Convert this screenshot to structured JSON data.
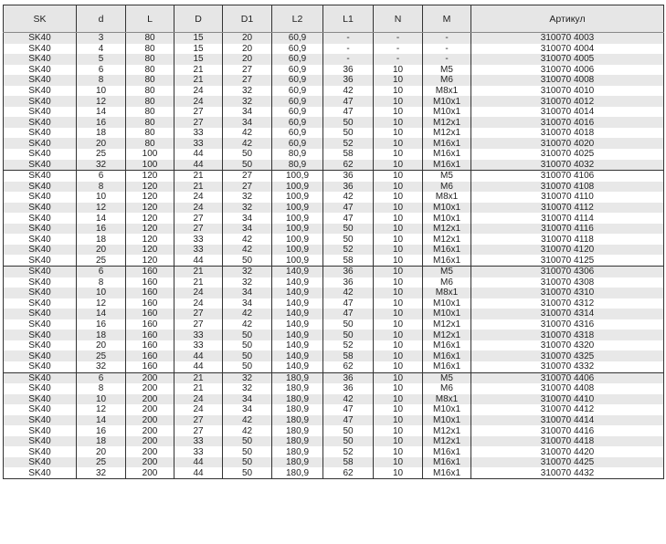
{
  "headers": [
    "SK",
    "d",
    "L",
    "D",
    "D1",
    "L2",
    "L1",
    "N",
    "M",
    "Артикул"
  ],
  "rows": [
    [
      "SK40",
      "3",
      "80",
      "15",
      "20",
      "60,9",
      "-",
      "-",
      "-",
      "310070 4003"
    ],
    [
      "SK40",
      "4",
      "80",
      "15",
      "20",
      "60,9",
      "-",
      "-",
      "-",
      "310070 4004"
    ],
    [
      "SK40",
      "5",
      "80",
      "15",
      "20",
      "60,9",
      "-",
      "-",
      "-",
      "310070 4005"
    ],
    [
      "SK40",
      "6",
      "80",
      "21",
      "27",
      "60,9",
      "36",
      "10",
      "M5",
      "310070 4006"
    ],
    [
      "SK40",
      "8",
      "80",
      "21",
      "27",
      "60,9",
      "36",
      "10",
      "M6",
      "310070 4008"
    ],
    [
      "SK40",
      "10",
      "80",
      "24",
      "32",
      "60,9",
      "42",
      "10",
      "M8x1",
      "310070 4010"
    ],
    [
      "SK40",
      "12",
      "80",
      "24",
      "32",
      "60,9",
      "47",
      "10",
      "M10x1",
      "310070 4012"
    ],
    [
      "SK40",
      "14",
      "80",
      "27",
      "34",
      "60,9",
      "47",
      "10",
      "M10x1",
      "310070 4014"
    ],
    [
      "SK40",
      "16",
      "80",
      "27",
      "34",
      "60,9",
      "50",
      "10",
      "M12x1",
      "310070 4016"
    ],
    [
      "SK40",
      "18",
      "80",
      "33",
      "42",
      "60,9",
      "50",
      "10",
      "M12x1",
      "310070 4018"
    ],
    [
      "SK40",
      "20",
      "80",
      "33",
      "42",
      "60,9",
      "52",
      "10",
      "M16x1",
      "310070 4020"
    ],
    [
      "SK40",
      "25",
      "100",
      "44",
      "50",
      "80,9",
      "58",
      "10",
      "M16x1",
      "310070 4025"
    ],
    [
      "SK40",
      "32",
      "100",
      "44",
      "50",
      "80,9",
      "62",
      "10",
      "M16x1",
      "310070 4032"
    ],
    [
      "SK40",
      "6",
      "120",
      "21",
      "27",
      "100,9",
      "36",
      "10",
      "M5",
      "310070 4106"
    ],
    [
      "SK40",
      "8",
      "120",
      "21",
      "27",
      "100,9",
      "36",
      "10",
      "M6",
      "310070 4108"
    ],
    [
      "SK40",
      "10",
      "120",
      "24",
      "32",
      "100,9",
      "42",
      "10",
      "M8x1",
      "310070 4110"
    ],
    [
      "SK40",
      "12",
      "120",
      "24",
      "32",
      "100,9",
      "47",
      "10",
      "M10x1",
      "310070 4112"
    ],
    [
      "SK40",
      "14",
      "120",
      "27",
      "34",
      "100,9",
      "47",
      "10",
      "M10x1",
      "310070 4114"
    ],
    [
      "SK40",
      "16",
      "120",
      "27",
      "34",
      "100,9",
      "50",
      "10",
      "M12x1",
      "310070 4116"
    ],
    [
      "SK40",
      "18",
      "120",
      "33",
      "42",
      "100,9",
      "50",
      "10",
      "M12x1",
      "310070 4118"
    ],
    [
      "SK40",
      "20",
      "120",
      "33",
      "42",
      "100,9",
      "52",
      "10",
      "M16x1",
      "310070 4120"
    ],
    [
      "SK40",
      "25",
      "120",
      "44",
      "50",
      "100,9",
      "58",
      "10",
      "M16x1",
      "310070 4125"
    ],
    [
      "SK40",
      "6",
      "160",
      "21",
      "32",
      "140,9",
      "36",
      "10",
      "M5",
      "310070 4306"
    ],
    [
      "SK40",
      "8",
      "160",
      "21",
      "32",
      "140,9",
      "36",
      "10",
      "M6",
      "310070 4308"
    ],
    [
      "SK40",
      "10",
      "160",
      "24",
      "34",
      "140,9",
      "42",
      "10",
      "M8x1",
      "310070 4310"
    ],
    [
      "SK40",
      "12",
      "160",
      "24",
      "34",
      "140,9",
      "47",
      "10",
      "M10x1",
      "310070 4312"
    ],
    [
      "SK40",
      "14",
      "160",
      "27",
      "42",
      "140,9",
      "47",
      "10",
      "M10x1",
      "310070 4314"
    ],
    [
      "SK40",
      "16",
      "160",
      "27",
      "42",
      "140,9",
      "50",
      "10",
      "M12x1",
      "310070 4316"
    ],
    [
      "SK40",
      "18",
      "160",
      "33",
      "50",
      "140,9",
      "50",
      "10",
      "M12x1",
      "310070 4318"
    ],
    [
      "SK40",
      "20",
      "160",
      "33",
      "50",
      "140,9",
      "52",
      "10",
      "M16x1",
      "310070 4320"
    ],
    [
      "SK40",
      "25",
      "160",
      "44",
      "50",
      "140,9",
      "58",
      "10",
      "M16x1",
      "310070 4325"
    ],
    [
      "SK40",
      "32",
      "160",
      "44",
      "50",
      "140,9",
      "62",
      "10",
      "M16x1",
      "310070 4332"
    ],
    [
      "SK40",
      "6",
      "200",
      "21",
      "32",
      "180,9",
      "36",
      "10",
      "M5",
      "310070 4406"
    ],
    [
      "SK40",
      "8",
      "200",
      "21",
      "32",
      "180,9",
      "36",
      "10",
      "M6",
      "310070 4408"
    ],
    [
      "SK40",
      "10",
      "200",
      "24",
      "34",
      "180,9",
      "42",
      "10",
      "M8x1",
      "310070 4410"
    ],
    [
      "SK40",
      "12",
      "200",
      "24",
      "34",
      "180,9",
      "47",
      "10",
      "M10x1",
      "310070 4412"
    ],
    [
      "SK40",
      "14",
      "200",
      "27",
      "42",
      "180,9",
      "47",
      "10",
      "M10x1",
      "310070 4414"
    ],
    [
      "SK40",
      "16",
      "200",
      "27",
      "42",
      "180,9",
      "50",
      "10",
      "M12x1",
      "310070 4416"
    ],
    [
      "SK40",
      "18",
      "200",
      "33",
      "50",
      "180,9",
      "50",
      "10",
      "M12x1",
      "310070 4418"
    ],
    [
      "SK40",
      "20",
      "200",
      "33",
      "50",
      "180,9",
      "52",
      "10",
      "M16x1",
      "310070 4420"
    ],
    [
      "SK40",
      "25",
      "200",
      "44",
      "50",
      "180,9",
      "58",
      "10",
      "M16x1",
      "310070 4425"
    ],
    [
      "SK40",
      "32",
      "200",
      "44",
      "50",
      "180,9",
      "62",
      "10",
      "M16x1",
      "310070 4432"
    ]
  ]
}
